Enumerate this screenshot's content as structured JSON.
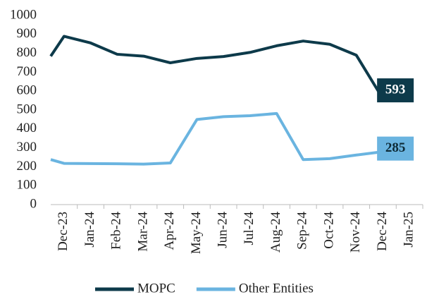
{
  "chart_data": {
    "type": "line",
    "categories": [
      null,
      "Dec-23",
      "Jan-24",
      "Feb-24",
      "Mar-24",
      "Apr-24",
      "May-24",
      "Jun-24",
      "Jul-24",
      "Aug-24",
      "Sep-24",
      "Oct-24",
      "Nov-24",
      "Dec-24",
      "Jan-25"
    ],
    "series": [
      {
        "name": "MOPC",
        "color": "#0d3a4a",
        "values": [
          785,
          890,
          855,
          795,
          785,
          750,
          773,
          783,
          805,
          840,
          865,
          848,
          790,
          560,
          593
        ]
      },
      {
        "name": "Other Entities",
        "color": "#6ab4e0",
        "values": [
          238,
          218,
          217,
          216,
          214,
          220,
          450,
          465,
          470,
          482,
          238,
          243,
          262,
          280,
          285
        ]
      }
    ],
    "ylim": [
      0,
      1000
    ],
    "yticks": [
      0,
      100,
      200,
      300,
      400,
      500,
      600,
      700,
      800,
      900,
      1000
    ],
    "grid": false,
    "legend": "bottom"
  }
}
